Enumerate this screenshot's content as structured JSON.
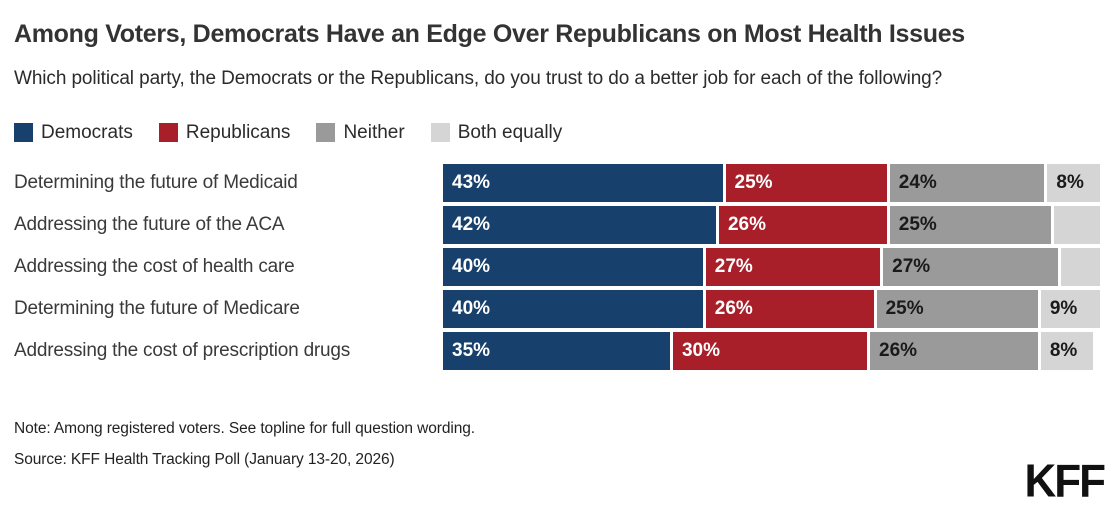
{
  "header": {
    "title": "Among Voters, Democrats Have an Edge Over Republicans on Most Health Issues",
    "subtitle": "Which political party, the Democrats or the Republicans, do you trust to do a better job for each of the following?"
  },
  "colors": {
    "democrats": "#18406d",
    "republicans": "#a81f29",
    "neither": "#9a9a9a",
    "both_equally": "#d5d5d5"
  },
  "legend": [
    {
      "label": "Democrats",
      "color": "#18406d"
    },
    {
      "label": "Republicans",
      "color": "#a81f29"
    },
    {
      "label": "Neither",
      "color": "#9a9a9a"
    },
    {
      "label": "Both equally",
      "color": "#d5d5d5"
    }
  ],
  "chart_data": {
    "type": "bar",
    "orientation": "horizontal_stacked",
    "unit": "percent",
    "xlim": [
      0,
      100
    ],
    "grid": false,
    "legend_position": "top",
    "categories": [
      "Determining the future of Medicaid",
      "Addressing the future of the ACA",
      "Addressing the cost of health care",
      "Determining the future of Medicare",
      "Addressing the cost of prescription drugs"
    ],
    "series": [
      {
        "name": "Democrats",
        "color": "#18406d",
        "text_color": "#ffffff",
        "values": [
          43,
          42,
          40,
          40,
          35
        ],
        "labels": [
          "43%",
          "42%",
          "40%",
          "40%",
          "35%"
        ]
      },
      {
        "name": "Republicans",
        "color": "#a81f29",
        "text_color": "#ffffff",
        "values": [
          25,
          26,
          27,
          26,
          30
        ],
        "labels": [
          "25%",
          "26%",
          "27%",
          "26%",
          "30%"
        ]
      },
      {
        "name": "Neither",
        "color": "#9a9a9a",
        "text_color": "#1a1a1a",
        "values": [
          24,
          25,
          27,
          25,
          26
        ],
        "labels": [
          "24%",
          "25%",
          "27%",
          "25%",
          "26%"
        ]
      },
      {
        "name": "Both equally",
        "color": "#d5d5d5",
        "text_color": "#1a1a1a",
        "values": [
          8,
          7,
          6,
          9,
          8
        ],
        "labels": [
          "8%",
          "",
          "",
          "9%",
          "8%"
        ]
      }
    ]
  },
  "footer": {
    "note": "Note: Among registered voters. See topline for full question wording.",
    "source": "Source: KFF Health Tracking Poll (January 13-20, 2026)",
    "logo": "KFF"
  }
}
